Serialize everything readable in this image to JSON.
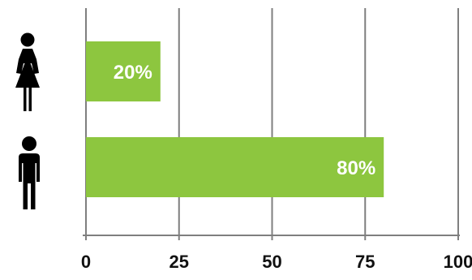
{
  "chart_data": {
    "type": "bar",
    "orientation": "horizontal",
    "categories": [
      "female",
      "male"
    ],
    "values": [
      20,
      80
    ],
    "data_labels": [
      "20%",
      "80%"
    ],
    "category_icons": [
      "female-figure-icon",
      "male-figure-icon"
    ],
    "xlim": [
      0,
      100
    ],
    "x_ticks": [
      0,
      25,
      50,
      75,
      100
    ],
    "x_tick_labels": [
      "0",
      "25",
      "50",
      "75",
      "100"
    ],
    "grid": true,
    "legend": "none",
    "title": "",
    "xlabel": "",
    "ylabel": ""
  },
  "colors": {
    "bar": "#8dc63f",
    "grid": "#7f7f7f",
    "axis": "#7f7f7f",
    "icon": "#000000",
    "tick_text": "#111111",
    "label_text": "#ffffff"
  }
}
